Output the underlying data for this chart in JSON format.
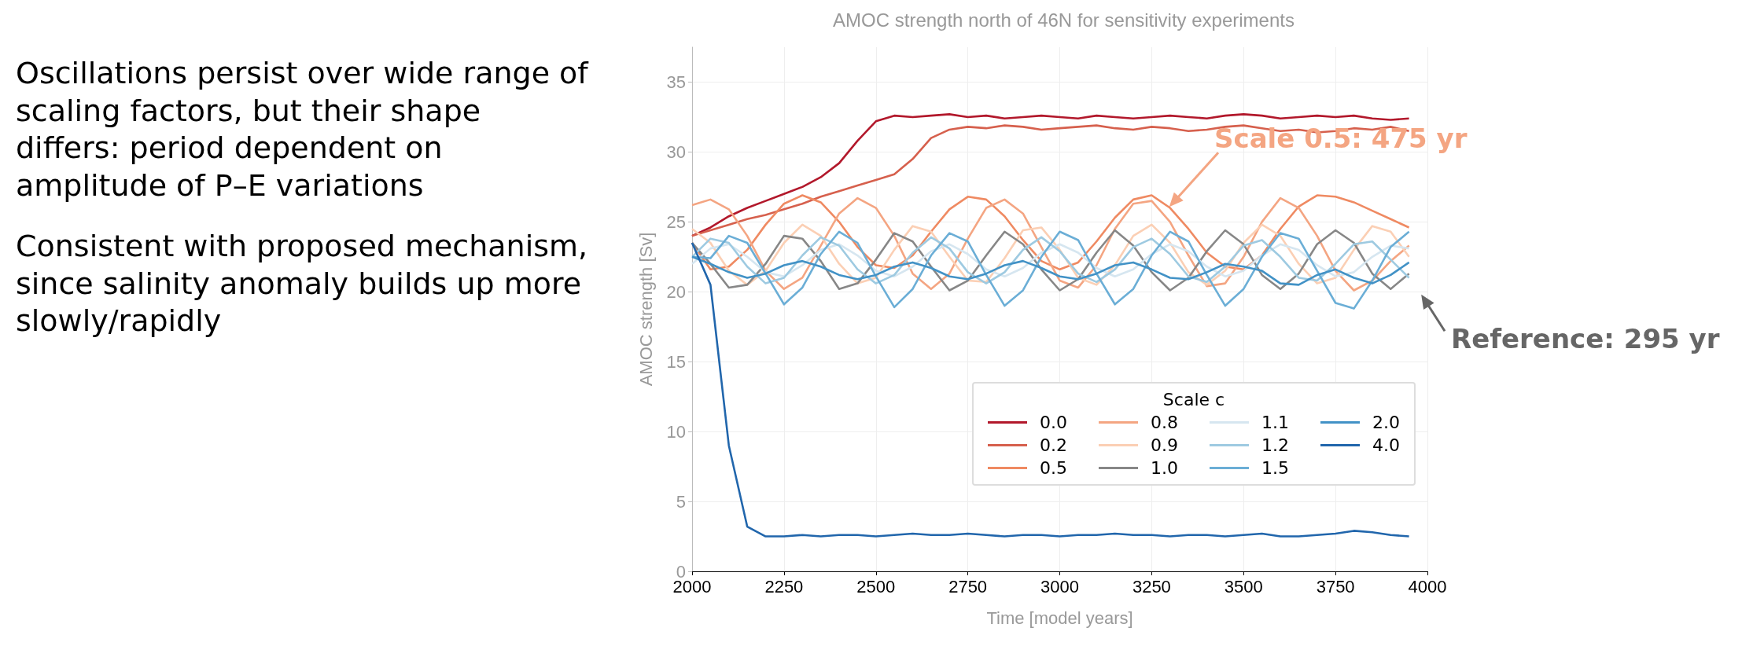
{
  "chart_data": {
    "type": "line",
    "title": "AMOC strength north of 46N for sensitivity experiments",
    "xlabel": "Time [model years]",
    "ylabel": "AMOC strength [Sv]",
    "legend_title": "Scale c",
    "legend": "bottom right",
    "grid": true,
    "xlim": [
      2000,
      4000
    ],
    "xticks": [
      2000,
      2250,
      2500,
      2750,
      3000,
      3250,
      3500,
      3750,
      4000
    ],
    "ylim": [
      0,
      37.5
    ],
    "yticks": [
      0,
      5,
      10,
      15,
      20,
      25,
      30,
      35
    ],
    "x": [
      2000,
      2050,
      2100,
      2150,
      2200,
      2250,
      2300,
      2350,
      2400,
      2450,
      2500,
      2550,
      2600,
      2650,
      2700,
      2750,
      2800,
      2850,
      2900,
      2950,
      3000,
      3050,
      3100,
      3150,
      3200,
      3250,
      3300,
      3350,
      3400,
      3450,
      3500,
      3550,
      3600,
      3650,
      3700,
      3750,
      3800,
      3850,
      3900,
      3950
    ],
    "series": [
      {
        "name": "0.0",
        "color": "#b2182b",
        "values": [
          24,
          24.6,
          25.4,
          26,
          26.5,
          27,
          27.5,
          28.2,
          29.2,
          30.8,
          32.2,
          32.6,
          32.5,
          32.6,
          32.7,
          32.5,
          32.6,
          32.4,
          32.5,
          32.6,
          32.5,
          32.4,
          32.6,
          32.5,
          32.4,
          32.5,
          32.6,
          32.5,
          32.4,
          32.6,
          32.7,
          32.6,
          32.4,
          32.5,
          32.6,
          32.5,
          32.6,
          32.4,
          32.3,
          32.4
        ]
      },
      {
        "name": "0.2",
        "color": "#d6604d",
        "values": [
          24,
          24.4,
          24.8,
          25.2,
          25.5,
          25.9,
          26.3,
          26.8,
          27.2,
          27.6,
          28,
          28.4,
          29.5,
          31,
          31.6,
          31.8,
          31.7,
          31.9,
          31.8,
          31.6,
          31.7,
          31.8,
          31.9,
          31.7,
          31.6,
          31.8,
          31.7,
          31.5,
          31.6,
          31.8,
          31.9,
          31.7,
          31.5,
          31.6,
          31.4,
          31.5,
          31.7,
          31.6,
          31.8,
          31.5
        ]
      },
      {
        "name": "0.5",
        "color": "#ef8a62",
        "values": [
          23.5,
          21.6,
          21.8,
          23,
          24.8,
          26.3,
          26.9,
          26.4,
          25,
          23.2,
          21.9,
          21.7,
          22.6,
          24.3,
          25.9,
          26.8,
          26.6,
          25.4,
          23.7,
          22.2,
          21.6,
          22.1,
          23.6,
          25.3,
          26.6,
          26.9,
          26,
          24.5,
          22.8,
          21.8,
          21.6,
          22.6,
          24.5,
          26.1,
          26.9,
          26.8,
          26.4,
          25.8,
          25.2,
          24.6
        ]
      },
      {
        "name": "0.8",
        "color": "#f4a582",
        "values": [
          26.2,
          26.6,
          25.9,
          24,
          21.5,
          20.2,
          21,
          23.3,
          25.6,
          26.7,
          26,
          24,
          21.3,
          20.2,
          21.3,
          23.8,
          26,
          26.6,
          25.6,
          23.2,
          20.8,
          20.3,
          21.9,
          24.5,
          26.3,
          26.5,
          25,
          22.6,
          20.4,
          20.6,
          22.5,
          25,
          26.7,
          26,
          24,
          21.5,
          20.1,
          20.8,
          22.2,
          23.3
        ]
      },
      {
        "name": "0.9",
        "color": "#fbcfb4",
        "values": [
          24.5,
          23.5,
          21.5,
          20.5,
          21.5,
          23.5,
          24.8,
          24,
          22,
          20.6,
          21,
          23,
          24.7,
          24.3,
          22.5,
          20.8,
          20.7,
          22.4,
          24.4,
          24.6,
          23,
          21,
          20.5,
          21.9,
          24,
          24.8,
          23.5,
          21.4,
          20.5,
          21.5,
          23.5,
          24.8,
          24,
          22,
          20.6,
          21,
          23,
          24.7,
          24.3,
          22.5
        ]
      },
      {
        "name": "1.0",
        "color": "#878787",
        "values": [
          23.5,
          22,
          20.3,
          20.5,
          22,
          24,
          23.8,
          22.2,
          20.2,
          20.6,
          22.3,
          24.2,
          23.6,
          21.8,
          20.1,
          20.8,
          22.6,
          24.3,
          23.4,
          21.6,
          20.1,
          20.9,
          22.8,
          24.4,
          23.3,
          21.4,
          20.1,
          21,
          22.9,
          24.4,
          23.4,
          21.2,
          20.2,
          21.3,
          23.4,
          24.4,
          23.5,
          21.3,
          20.2,
          21.3
        ]
      },
      {
        "name": "1.1",
        "color": "#d6e6f0",
        "values": [
          22,
          23.1,
          23.4,
          22.5,
          21.4,
          21.1,
          21.9,
          23,
          23.4,
          22.6,
          21.5,
          21.1,
          21.8,
          22.9,
          23.4,
          22.7,
          21.6,
          21.1,
          21.7,
          22.8,
          23.4,
          22.8,
          21.7,
          21.1,
          21.6,
          22.7,
          23.4,
          22.9,
          21.8,
          21.1,
          21.5,
          22.6,
          23.4,
          23,
          21.9,
          21.1,
          21.4,
          22.5,
          23.3,
          23.1
        ]
      },
      {
        "name": "1.2",
        "color": "#9ecae1",
        "values": [
          22.5,
          23.8,
          23.5,
          21.8,
          20.6,
          21,
          22.6,
          23.9,
          23.3,
          21.6,
          20.6,
          21.2,
          22.8,
          23.9,
          23.1,
          21.4,
          20.6,
          21.4,
          23,
          23.9,
          22.9,
          21.3,
          20.7,
          21.6,
          23.2,
          23.8,
          22.7,
          21.1,
          20.7,
          21.8,
          23.3,
          23.7,
          22.5,
          21,
          20.8,
          22,
          23.4,
          23.6,
          22.3,
          21
        ]
      },
      {
        "name": "1.5",
        "color": "#6baed6",
        "values": [
          22.5,
          22.4,
          24,
          23.5,
          21.3,
          19.1,
          20.3,
          22.7,
          24.3,
          23.5,
          21.1,
          18.9,
          20.2,
          22.6,
          24.2,
          23.6,
          21.2,
          19,
          20.1,
          22.5,
          24.3,
          23.7,
          21.3,
          19.1,
          20.2,
          22.6,
          24.3,
          23.6,
          21.2,
          19,
          20.2,
          22.5,
          24.2,
          23.8,
          21.5,
          19.2,
          18.8,
          20.8,
          23.2,
          24.3
        ]
      },
      {
        "name": "2.0",
        "color": "#4292c6",
        "values": [
          22.5,
          22,
          21.4,
          21,
          21.3,
          21.9,
          22.2,
          21.8,
          21.2,
          20.9,
          21.2,
          21.8,
          22.1,
          21.7,
          21.1,
          20.9,
          21.3,
          21.9,
          22.2,
          21.7,
          21.1,
          20.9,
          21.3,
          21.9,
          22.1,
          21.6,
          21,
          20.9,
          21.4,
          22,
          21.8,
          21.5,
          20.6,
          20.5,
          21.2,
          21.6,
          21,
          20.6,
          21.2,
          22.1
        ]
      },
      {
        "name": "4.0",
        "color": "#2166ac",
        "values": [
          23.5,
          20.5,
          9,
          3.2,
          2.5,
          2.5,
          2.6,
          2.5,
          2.6,
          2.6,
          2.5,
          2.6,
          2.7,
          2.6,
          2.6,
          2.7,
          2.6,
          2.5,
          2.6,
          2.6,
          2.5,
          2.6,
          2.6,
          2.7,
          2.6,
          2.6,
          2.5,
          2.6,
          2.6,
          2.5,
          2.6,
          2.7,
          2.5,
          2.5,
          2.6,
          2.7,
          2.9,
          2.8,
          2.6,
          2.5
        ]
      }
    ],
    "annotations": [
      "Oscillations persist over wide range of scaling factors, but their shape differs: period dependent on amplitude of P–E variations",
      "Consistent with proposed mechanism, since salinity anomaly builds up more slowly/rapidly",
      {
        "text": "Scale 0.5:   475 yr",
        "x": 3292,
        "y": 25.9
      },
      "Reference: 295 yr"
    ]
  }
}
